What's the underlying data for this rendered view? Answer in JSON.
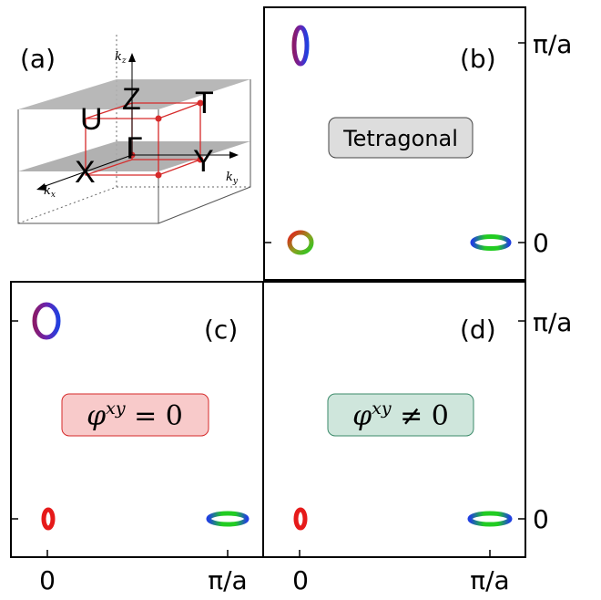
{
  "panel_labels": {
    "a": "(a)",
    "b": "(b)",
    "c": "(c)",
    "d": "(d)"
  },
  "bz_diagram": {
    "points": {
      "Z": "Z",
      "U": "U",
      "T": "T",
      "Gamma": "Γ",
      "X": "X",
      "Y": "Y"
    },
    "axes": {
      "kz": "k",
      "kz_sub": "z",
      "kx": "k",
      "kx_sub": "x",
      "ky": "k",
      "ky_sub": "y"
    }
  },
  "axis_ticks": {
    "top_right": [
      "π/a",
      "0"
    ],
    "bottom_right": [
      "π/a",
      "0"
    ],
    "bottom": [
      "0",
      "π/a",
      "0",
      "π/a"
    ]
  },
  "panel_b": {
    "badge": "Tetragonal",
    "badge_color": "#dddddd"
  },
  "panel_c": {
    "badge_main": "φ",
    "badge_sup": "xy",
    "badge_rest": " = 0",
    "badge_color": "#f8caca",
    "badge_border": "#d62a2a"
  },
  "panel_d": {
    "badge_main": "φ",
    "badge_sup": "xy",
    "badge_rest": " ≠ 0",
    "badge_color": "#cfe6dc",
    "badge_border": "#3b8a6a"
  },
  "colors": {
    "red": "#e61a1a",
    "green": "#22cc22",
    "blue": "#2040e0",
    "purple": "#7a1f8c",
    "bz_red": "#d62a2a"
  }
}
